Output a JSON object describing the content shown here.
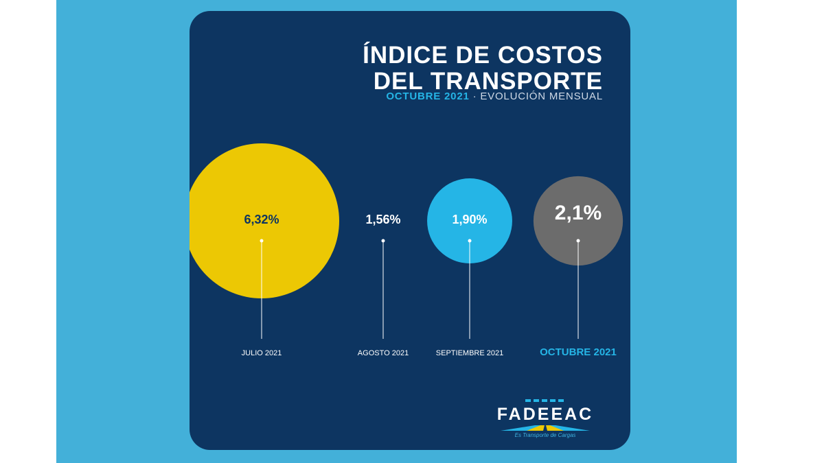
{
  "colors": {
    "page_band": "#43b0d9",
    "card": "#0d3561",
    "accent": "#25b5e6",
    "yellow": "#ecc804",
    "gray": "#6c6c6c",
    "white": "#ffffff"
  },
  "header": {
    "title_line1": "ÍNDICE DE COSTOS",
    "title_line2": "DEL TRANSPORTE",
    "subtitle_highlight": "OCTUBRE 2021",
    "subtitle_rest": " · EVOLUCIÓN MENSUAL"
  },
  "chart_data": {
    "type": "bubble",
    "title": "ÍNDICE DE COSTOS DEL TRANSPORTE",
    "subtitle": "OCTUBRE 2021 · EVOLUCIÓN MENSUAL",
    "categories": [
      "JULIO 2021",
      "AGOSTO 2021",
      "SEPTIEMBRE 2021",
      "OCTUBRE 2021"
    ],
    "values": [
      6.32,
      1.56,
      1.9,
      2.1
    ],
    "value_labels": [
      "6,32%",
      "1,56%",
      "1,90%",
      "2,1%"
    ],
    "bubble_colors": [
      "#ecc804",
      "none",
      "#25b5e6",
      "#6c6c6c"
    ],
    "label_colors": [
      "#0d3561",
      "#ffffff",
      "#ffffff",
      "#ffffff"
    ],
    "category_label_colors": [
      "#ffffff",
      "#ffffff",
      "#ffffff",
      "#25b5e6"
    ],
    "highlighted_category": "OCTUBRE 2021"
  },
  "logo": {
    "name": "FADEEAC",
    "tagline": "Es Transporte de Cargas"
  }
}
